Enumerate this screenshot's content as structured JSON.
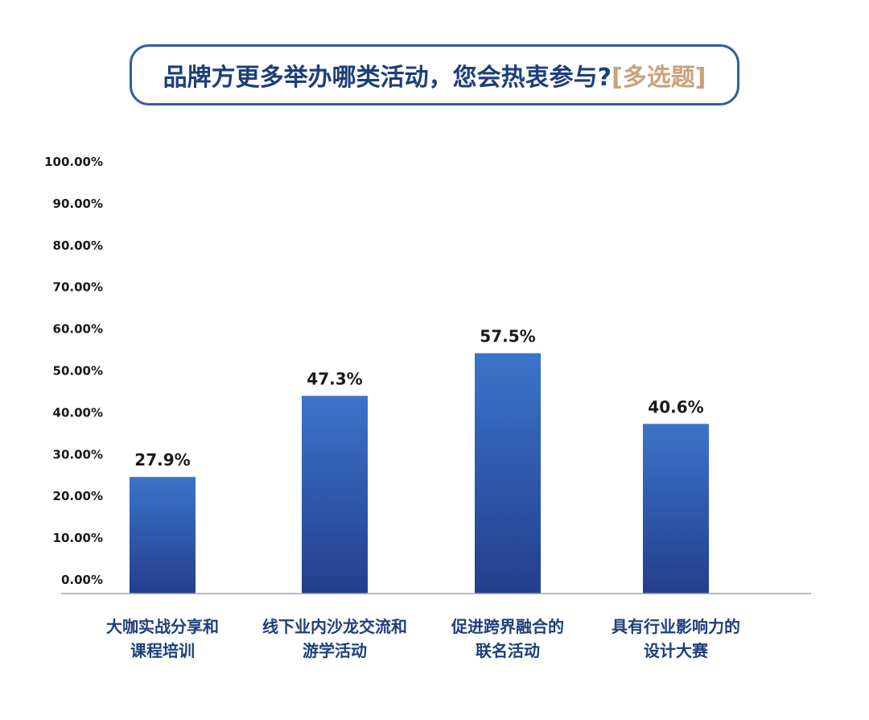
{
  "header": {
    "title": "品牌方更多举办哪类活动，您会热衷参与?",
    "tag": "[多选题]"
  },
  "colors": {
    "title_text": "#1d3f7a",
    "tag_text": "#c9a27a",
    "border": "#2f5fa6",
    "bar_top": "#3b74c9",
    "bar_bottom": "#233e8c",
    "category_text": "#1d3f7a"
  },
  "chart_data": {
    "type": "bar",
    "title": "品牌方更多举办哪类活动，您会热衷参与?[多选题]",
    "categories": [
      [
        "大咖实战分享和",
        "课程培训"
      ],
      [
        "线下业内沙龙交流和",
        "游学活动"
      ],
      [
        "促进跨界融合的",
        "联名活动"
      ],
      [
        "具有行业影响力的",
        "设计大赛"
      ]
    ],
    "values": [
      27.9,
      47.3,
      57.5,
      40.6
    ],
    "value_labels": [
      "27.9%",
      "47.3%",
      "57.5%",
      "40.6%"
    ],
    "ylim": [
      0,
      100
    ],
    "yticks": [
      "0.00%",
      "10.00%",
      "20.00%",
      "30.00%",
      "40.00%",
      "50.00%",
      "60.00%",
      "70.00%",
      "80.00%",
      "90.00%",
      "100.00%"
    ],
    "grid": false,
    "legend": "none"
  }
}
